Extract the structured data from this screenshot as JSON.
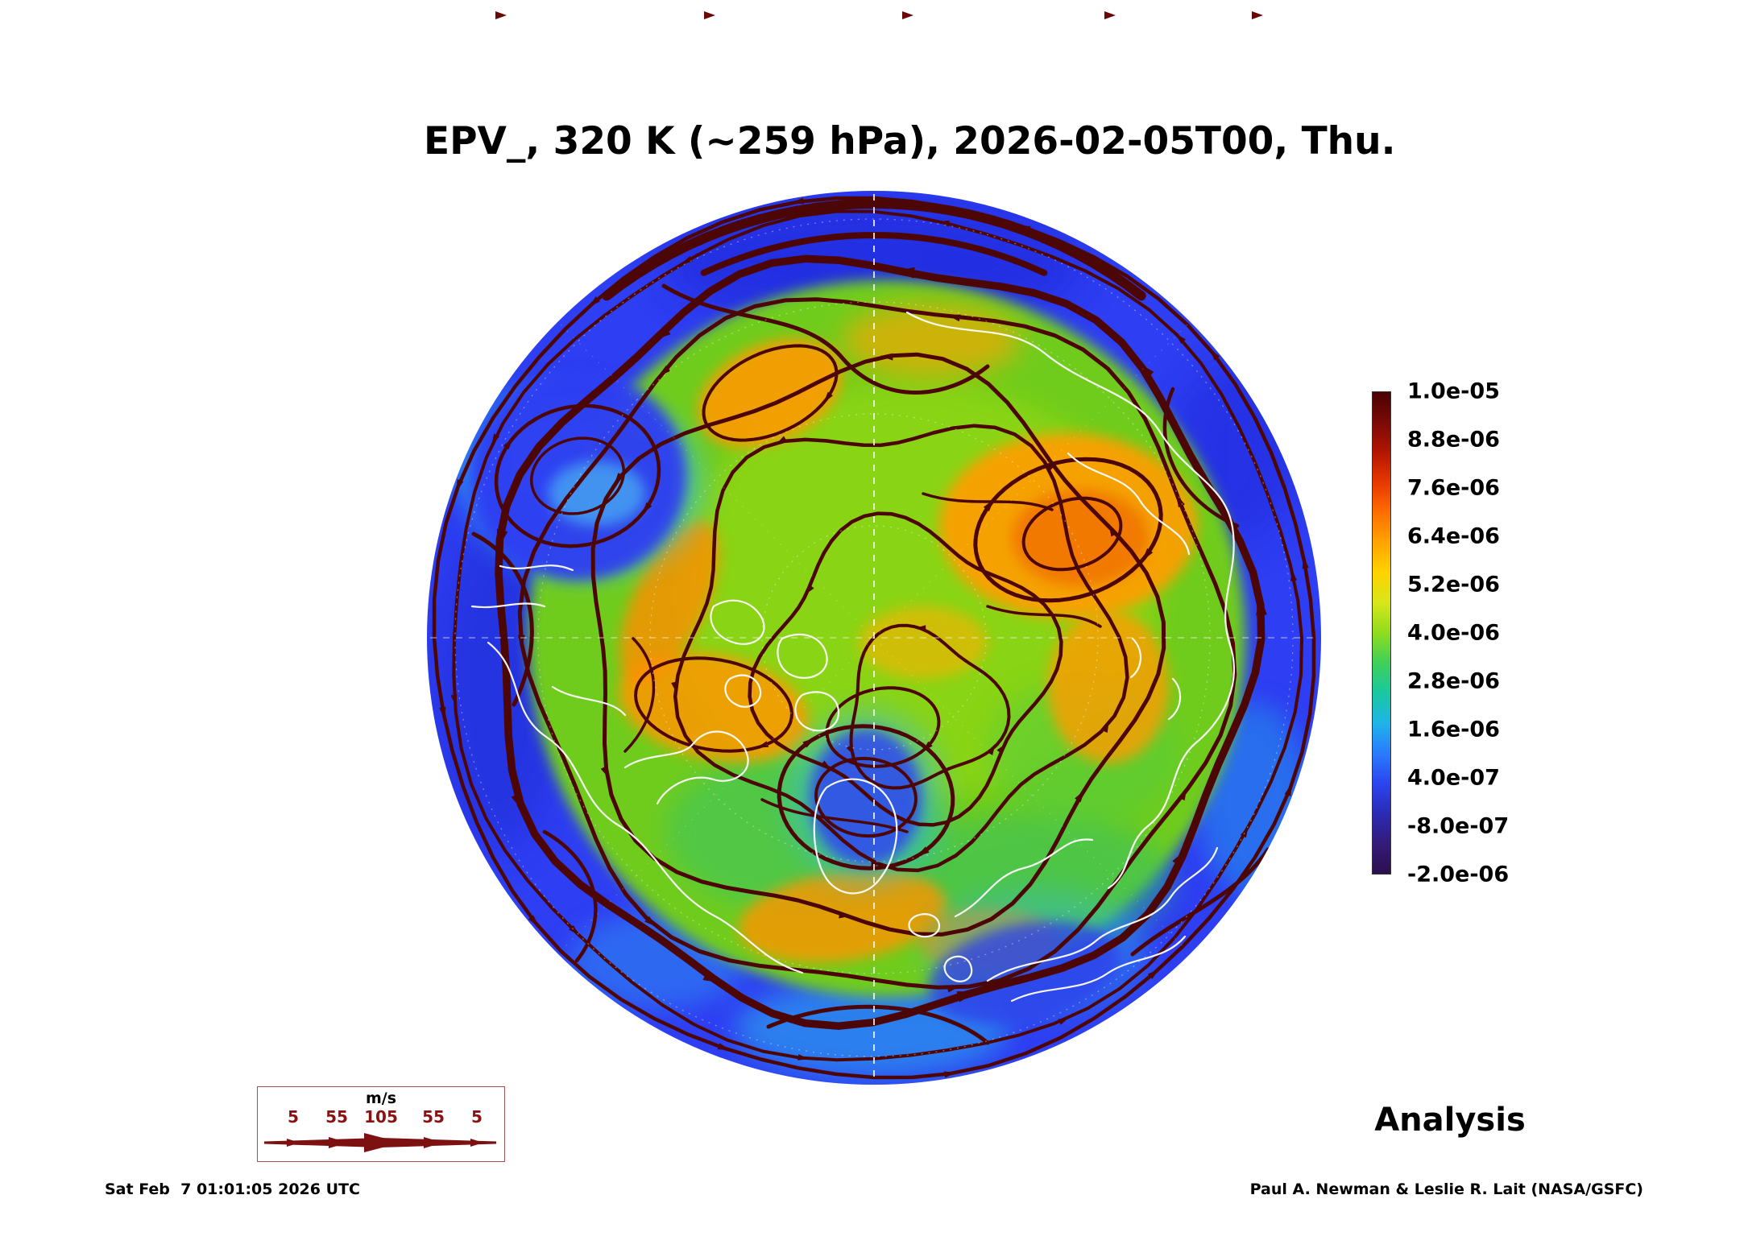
{
  "title": "EPV_, 320 K (~259 hPa), 2026-02-05T00, Thu.",
  "colorbar": {
    "ticks": [
      "1.0e-05",
      "8.8e-06",
      "7.6e-06",
      "6.4e-06",
      "5.2e-06",
      "4.0e-06",
      "2.8e-06",
      "1.6e-06",
      "4.0e-07",
      "-8.0e-07",
      "-2.0e-06"
    ],
    "colors": [
      "#4a0202",
      "#7a0a06",
      "#b31500",
      "#e83800",
      "#ff6e00",
      "#ffa400",
      "#ffd300",
      "#d7e619",
      "#8fdc1e",
      "#3fd05a",
      "#19c8a0",
      "#1fb4e8",
      "#2a7bff",
      "#2b45f0",
      "#2a2bb4",
      "#341b7a",
      "#2b0f4e"
    ]
  },
  "wind_legend": {
    "unit": "m/s",
    "ticks": [
      "5",
      "55",
      "105",
      "55",
      "5"
    ]
  },
  "annotations": {
    "analysis": "Analysis",
    "timestamp": "Sat Feb  7 01:01:05 2026 UTC",
    "credit": "Paul A. Newman & Leslie R. Lait (NASA/GSFC)"
  },
  "map": {
    "streamline_color": "#4d0606",
    "base_blue": "#2e3ef2"
  },
  "chart_data": {
    "type": "heatmap",
    "title": "EPV_, 320 K (~259 hPa), 2026-02-05T00, Thu.",
    "field": "EPV_",
    "level": "320 K (~259 hPa)",
    "valid_time": "2026-02-05T00",
    "run_type": "Analysis",
    "projection": "north polar stereographic disc",
    "colorbar_ticks": [
      1e-05,
      8.8e-06,
      7.6e-06,
      6.4e-06,
      5.2e-06,
      4e-06,
      2.8e-06,
      1.6e-06,
      4e-07,
      -8e-07,
      -2e-06
    ],
    "colorbar_range": [
      -2e-06,
      1e-05
    ],
    "legend_position": "right",
    "wind_scale_ms": [
      5,
      55,
      105,
      55,
      5
    ],
    "overlays": [
      "wind streamlines with arrowheads",
      "white coastlines",
      "dashed graticule"
    ]
  }
}
